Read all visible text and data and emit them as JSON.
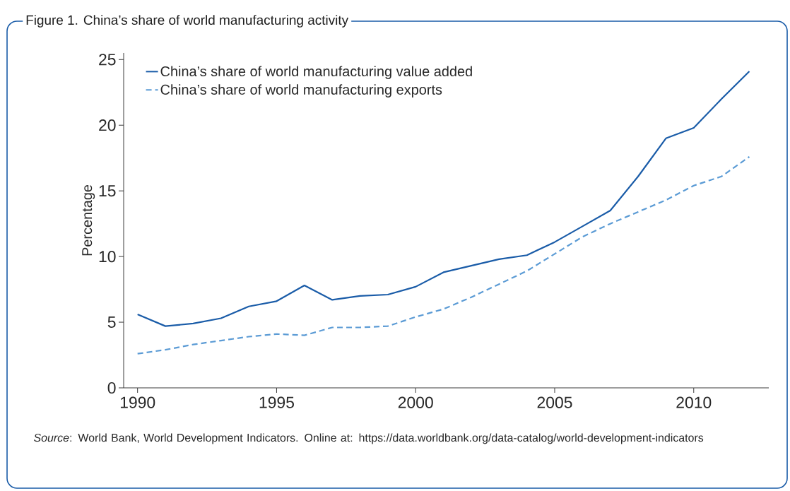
{
  "chart_data": {
    "type": "line",
    "title": "Figure 1. China’s share of world manufacturing activity",
    "ylabel": "Percentage",
    "x": [
      1990,
      1991,
      1992,
      1993,
      1994,
      1995,
      1996,
      1997,
      1998,
      1999,
      2000,
      2001,
      2002,
      2003,
      2004,
      2005,
      2006,
      2007,
      2008,
      2009,
      2010,
      2011,
      2012
    ],
    "series": [
      {
        "name": "China’s share of world manufacturing value added",
        "color": "#1a5ca8",
        "line_style": "solid",
        "values": [
          5.6,
          4.7,
          4.9,
          5.3,
          6.2,
          6.6,
          7.8,
          6.7,
          7.0,
          7.1,
          7.7,
          8.8,
          9.3,
          9.8,
          10.1,
          11.1,
          12.3,
          13.5,
          16.1,
          19.0,
          19.8,
          22.0,
          24.1
        ]
      },
      {
        "name": "China’s share of world manufacturing exports",
        "color": "#5b9bd5",
        "line_style": "dashed",
        "values": [
          2.6,
          2.9,
          3.3,
          3.6,
          3.9,
          4.1,
          4.0,
          4.6,
          4.6,
          4.7,
          5.4,
          6.0,
          6.9,
          7.9,
          8.9,
          10.2,
          11.5,
          12.5,
          13.4,
          14.3,
          15.4,
          16.1,
          17.6
        ]
      }
    ],
    "xlim": [
      1989.5,
      2012.7
    ],
    "ylim": [
      0,
      25.5
    ],
    "xticks": [
      1990,
      1995,
      2000,
      2005,
      2010
    ],
    "yticks": [
      0,
      5,
      10,
      15,
      20,
      25
    ],
    "grid": false,
    "legend": "top left",
    "marker": "none",
    "annotations": [
      "*Source*: World Bank, World Development Indicators. Online at: https://data.worldbank.org/data-catalog/world-development-indicators"
    ]
  }
}
